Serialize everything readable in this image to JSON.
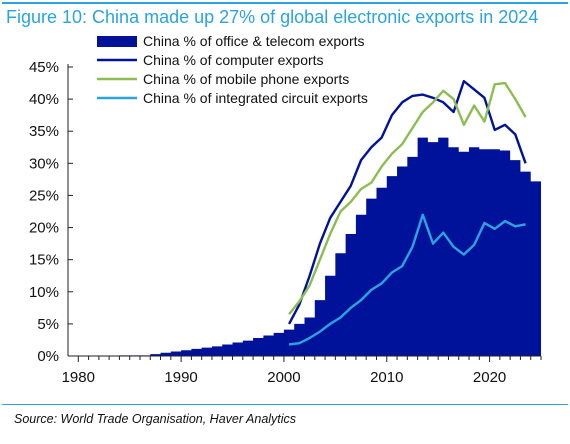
{
  "figure": {
    "title": "Figure 10: China made up 27% of global electronic exports in 2024",
    "source": "Source: World Trade Organisation, Haver Analytics",
    "accent_color": "#2aa4df"
  },
  "chart_data": {
    "type": "area",
    "title": "Figure 10: China made up 27% of global electronic exports in 2024",
    "xlabel": "",
    "ylabel": "",
    "xlim": [
      1979,
      2025
    ],
    "ylim": [
      0,
      45
    ],
    "x_ticks": [
      1980,
      1990,
      2000,
      2010,
      2020
    ],
    "x_tick_labels": [
      "1980",
      "1990",
      "2000",
      "2010",
      "2020"
    ],
    "y_ticks": [
      0,
      5,
      10,
      15,
      20,
      25,
      30,
      35,
      40,
      45
    ],
    "y_tick_labels": [
      "0%",
      "5%",
      "10%",
      "15%",
      "20%",
      "25%",
      "30%",
      "35%",
      "40%",
      "45%"
    ],
    "grid": false,
    "legend_position": "top-left",
    "series": [
      {
        "name": "China % of office & telecom exports",
        "kind": "area",
        "color": "#00129a",
        "x": [
          1984,
          1985,
          1986,
          1987,
          1988,
          1989,
          1990,
          1991,
          1992,
          1993,
          1994,
          1995,
          1996,
          1997,
          1998,
          1999,
          2000,
          2001,
          2002,
          2003,
          2004,
          2005,
          2006,
          2007,
          2008,
          2009,
          2010,
          2011,
          2012,
          2013,
          2014,
          2015,
          2016,
          2017,
          2018,
          2019,
          2020,
          2021,
          2022,
          2023,
          2024
        ],
        "values": [
          0.1,
          0.1,
          0.1,
          0.3,
          0.5,
          0.7,
          0.9,
          1.1,
          1.3,
          1.5,
          1.8,
          2.1,
          2.4,
          2.8,
          3.2,
          3.6,
          4.1,
          5.0,
          6.0,
          8.7,
          12.5,
          16.0,
          19.0,
          22.0,
          24.5,
          26.2,
          28.0,
          29.5,
          31.0,
          34.0,
          33.3,
          34.0,
          32.5,
          31.8,
          32.5,
          32.2,
          32.2,
          32.0,
          30.5,
          28.7,
          27.2
        ]
      },
      {
        "name": "China % of computer exports",
        "kind": "line",
        "color": "#00129a",
        "x": [
          2000,
          2001,
          2002,
          2003,
          2004,
          2005,
          2006,
          2007,
          2008,
          2009,
          2010,
          2011,
          2012,
          2013,
          2014,
          2015,
          2016,
          2017,
          2018,
          2019,
          2020,
          2021,
          2022,
          2023
        ],
        "values": [
          5.0,
          8.0,
          12.5,
          17.5,
          21.5,
          24.0,
          26.5,
          30.5,
          32.5,
          34.0,
          37.5,
          39.5,
          40.5,
          40.7,
          40.2,
          39.5,
          38.0,
          42.8,
          41.5,
          40.2,
          35.2,
          36.0,
          34.5,
          30.0
        ]
      },
      {
        "name": "China % of mobile phone exports",
        "kind": "line",
        "color": "#8dbd51",
        "x": [
          2000,
          2001,
          2002,
          2003,
          2004,
          2005,
          2006,
          2007,
          2008,
          2009,
          2010,
          2011,
          2012,
          2013,
          2014,
          2015,
          2016,
          2017,
          2018,
          2019,
          2020,
          2021,
          2022,
          2023
        ],
        "values": [
          6.5,
          8.5,
          11.0,
          15.0,
          19.0,
          22.5,
          24.0,
          26.0,
          27.0,
          29.5,
          31.5,
          33.0,
          35.5,
          38.0,
          39.5,
          41.3,
          40.0,
          36.0,
          39.0,
          36.5,
          42.3,
          42.5,
          40.0,
          37.2
        ]
      },
      {
        "name": "China % of integrated circuit exports",
        "kind": "line",
        "color": "#2aa4df",
        "x": [
          2000,
          2001,
          2002,
          2003,
          2004,
          2005,
          2006,
          2007,
          2008,
          2009,
          2010,
          2011,
          2012,
          2013,
          2014,
          2015,
          2016,
          2017,
          2018,
          2019,
          2020,
          2021,
          2022,
          2023
        ],
        "values": [
          1.8,
          2.0,
          2.8,
          3.8,
          5.0,
          6.0,
          7.5,
          8.7,
          10.3,
          11.3,
          13.0,
          14.0,
          17.0,
          22.0,
          17.5,
          19.2,
          17.0,
          15.8,
          17.3,
          20.7,
          19.8,
          21.0,
          20.2,
          20.5
        ]
      }
    ]
  }
}
